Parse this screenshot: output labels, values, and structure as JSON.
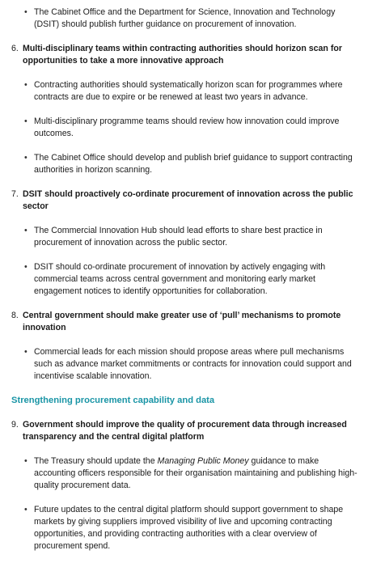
{
  "intro_bullets": [
    "The Cabinet Office and the Department for Science, Innovation and Technology (DSIT) should publish further guidance on procurement of innovation."
  ],
  "items": [
    {
      "number": "6.",
      "heading": "Multi-disciplinary teams within contracting authorities should horizon scan for opportunities to take a more innovative approach",
      "bullets": [
        "Contracting authorities should systematically horizon scan for programmes where contracts are due to expire or be renewed at least two years in advance.",
        "Multi-disciplinary programme teams should review how innovation could improve outcomes.",
        "The Cabinet Office should develop and publish brief guidance to support contracting authorities in horizon scanning."
      ]
    },
    {
      "number": "7.",
      "heading": "DSIT should proactively co-ordinate procurement of innovation across the public sector",
      "bullets": [
        "The Commercial Innovation Hub should lead efforts to share best practice in procurement of innovation across the public sector.",
        "DSIT should co-ordinate procurement of innovation by actively engaging with commercial teams across central government and monitoring early market engagement notices to identify opportunities for collaboration."
      ]
    },
    {
      "number": "8.",
      "heading": "Central government should make greater use of ‘pull’ mechanisms to promote innovation",
      "bullets": [
        "Commercial leads for each mission should propose areas where pull mechanisms such as advance market commitments or contracts for innovation could support and incentivise scalable innovation."
      ]
    }
  ],
  "section": {
    "heading": "Strengthening procurement capability and data",
    "items": [
      {
        "number": "9.",
        "heading": "Government should improve the quality of procurement data through increased transparency and the central digital platform",
        "bullet_0_parts": [
          "The Treasury should update the ",
          "Managing Public Money",
          " guidance to make accounting officers responsible for their organisation maintaining and publishing high-quality procurement data."
        ],
        "bullets": [
          "Future updates to the central digital platform should support government to shape markets by giving suppliers improved visibility of live and upcoming contracting opportunities, and providing contracting authorities with a clear overview of procurement spend."
        ]
      }
    ]
  }
}
